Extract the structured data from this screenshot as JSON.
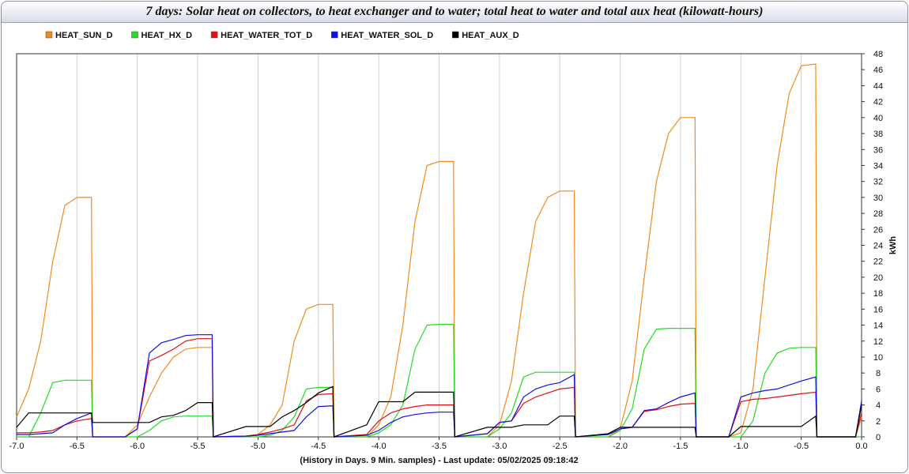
{
  "chart_data": {
    "type": "line",
    "title": "7 days: Solar heat on collectors, to heat exchanger and to water; total heat to water and total aux heat (kilowatt-hours)",
    "x_label": "(History in Days. 9 Min. samples) - Last update: 05/02/2025 09:18:42",
    "y_label": "kWh",
    "x": [
      -7.0,
      -6.9,
      -6.8,
      -6.7,
      -6.6,
      -6.5,
      -6.38,
      -6.37,
      -6.1,
      -6.0,
      -5.9,
      -5.8,
      -5.7,
      -5.6,
      -5.5,
      -5.38,
      -5.37,
      -5.1,
      -5.0,
      -4.9,
      -4.8,
      -4.7,
      -4.6,
      -4.5,
      -4.38,
      -4.37,
      -4.1,
      -4.0,
      -3.9,
      -3.8,
      -3.7,
      -3.6,
      -3.5,
      -3.38,
      -3.37,
      -3.1,
      -3.0,
      -2.9,
      -2.8,
      -2.7,
      -2.6,
      -2.5,
      -2.38,
      -2.37,
      -2.1,
      -2.0,
      -1.9,
      -1.8,
      -1.7,
      -1.6,
      -1.5,
      -1.38,
      -1.37,
      -1.1,
      -1.0,
      -0.9,
      -0.8,
      -0.7,
      -0.6,
      -0.5,
      -0.38,
      -0.37,
      -0.1,
      -0.05,
      0.0
    ],
    "series": [
      {
        "name": "HEAT_SUN_D",
        "color": "#f08a1c",
        "values": [
          2.5,
          6,
          12,
          22,
          29,
          30,
          30,
          0,
          0,
          1.5,
          5,
          8,
          10,
          11,
          11.2,
          11.2,
          0,
          0,
          0.3,
          1.5,
          4,
          12,
          16,
          16.6,
          16.6,
          0,
          0,
          1.5,
          5,
          14,
          27,
          34,
          34.5,
          34.5,
          0,
          0,
          1.5,
          7,
          18,
          27,
          30,
          30.8,
          30.8,
          0,
          0,
          1,
          7,
          20,
          32,
          38,
          40,
          40,
          0,
          0,
          0.5,
          6,
          20,
          34,
          43,
          46.5,
          46.7,
          0,
          0,
          0,
          2.5
        ]
      },
      {
        "name": "HEAT_HX_D",
        "color": "#22dd22",
        "values": [
          0,
          0,
          3,
          6.8,
          7.1,
          7.1,
          7.1,
          0,
          0,
          0,
          0.8,
          2,
          2.5,
          2.6,
          2.6,
          2.6,
          0,
          0,
          0,
          0.2,
          0.8,
          2.5,
          6,
          6.2,
          6.2,
          0,
          0,
          0.5,
          1.5,
          4,
          11,
          14,
          14.1,
          14.1,
          0,
          0,
          1,
          3,
          7.5,
          8.1,
          8.1,
          8.1,
          8.1,
          0,
          0,
          0.8,
          3.5,
          11,
          13.5,
          13.6,
          13.6,
          13.6,
          0,
          0,
          0,
          2,
          8,
          10.5,
          11.1,
          11.2,
          11.2,
          0,
          0,
          0,
          0
        ]
      },
      {
        "name": "HEAT_WATER_TOT_D",
        "color": "#e01010",
        "values": [
          0.5,
          0.5,
          0.6,
          0.8,
          1.5,
          2,
          2.3,
          0,
          0,
          1,
          9.5,
          10.2,
          11,
          12,
          12.3,
          12.3,
          0,
          0.1,
          0.3,
          0.6,
          1,
          1.5,
          4.5,
          5.3,
          5.4,
          0,
          0.3,
          2,
          3,
          3.5,
          3.8,
          4,
          4,
          4,
          0,
          0.4,
          1.8,
          2,
          4.2,
          5,
          5.5,
          6,
          6.2,
          0,
          0.3,
          1,
          1.2,
          3.2,
          3.4,
          3.8,
          4.1,
          4.2,
          0,
          0,
          4.4,
          4.7,
          4.8,
          5,
          5.2,
          5.4,
          5.6,
          0,
          0,
          0,
          3
        ]
      },
      {
        "name": "HEAT_WATER_SOL_D",
        "color": "#1010e0",
        "values": [
          0.3,
          0.3,
          0.4,
          0.5,
          1.5,
          2.3,
          3,
          0,
          0,
          1,
          10.5,
          11.8,
          12.2,
          12.7,
          12.8,
          12.8,
          0,
          0.1,
          0.2,
          0.4,
          0.6,
          0.8,
          2.5,
          3.8,
          3.9,
          0,
          0.2,
          0.8,
          1.8,
          2.5,
          2.8,
          3,
          3.1,
          3.1,
          0,
          0.4,
          1.8,
          2,
          5,
          6,
          6.5,
          6.8,
          7.8,
          0,
          0.3,
          1,
          1.2,
          3.3,
          3.5,
          4.3,
          5,
          5.5,
          0,
          0,
          5,
          5.5,
          5.8,
          6,
          6.5,
          7,
          7.5,
          0,
          0,
          0,
          4.5
        ]
      },
      {
        "name": "HEAT_AUX_D",
        "color": "#000000",
        "values": [
          1.2,
          3,
          3,
          3,
          3,
          3,
          3,
          1.8,
          1.8,
          1.8,
          1.8,
          2.5,
          2.7,
          3.3,
          4.3,
          4.3,
          0,
          1.3,
          1.3,
          1.3,
          2.5,
          3.3,
          4.3,
          5.5,
          6.3,
          0,
          1.5,
          4.4,
          4.4,
          4.4,
          5.6,
          5.6,
          5.6,
          5.6,
          0,
          1.2,
          1.2,
          1.2,
          1.5,
          1.5,
          1.5,
          2.6,
          2.6,
          0,
          0.4,
          1.2,
          1.2,
          1.2,
          1.2,
          1.2,
          1.2,
          1.2,
          0,
          0,
          1.3,
          1.3,
          1.3,
          1.3,
          1.3,
          1.3,
          2.6,
          0,
          0,
          0,
          4
        ]
      }
    ],
    "xlim": [
      -7,
      0
    ],
    "xticks": [
      {
        "value": -7,
        "label": "-7.0"
      },
      -6.5,
      {
        "value": -6,
        "label": "-6.0"
      },
      -5.5,
      {
        "value": -5,
        "label": "-5.0"
      },
      -4.5,
      {
        "value": -4,
        "label": "-4.0"
      },
      -3.5,
      {
        "value": -3,
        "label": "-3.0"
      },
      -2.5,
      {
        "value": -2,
        "label": "-2.0"
      },
      -1.5,
      {
        "value": -1,
        "label": "-1.0"
      },
      -0.5,
      {
        "value": 0,
        "label": "0.0"
      }
    ],
    "ylim": [
      0,
      48
    ],
    "yticks": [
      0,
      2,
      4,
      6,
      8,
      10,
      12,
      14,
      16,
      18,
      20,
      22,
      24,
      26,
      28,
      30,
      32,
      34,
      36,
      38,
      40,
      42,
      44,
      46,
      48
    ],
    "grid": "x",
    "legend": "top"
  }
}
